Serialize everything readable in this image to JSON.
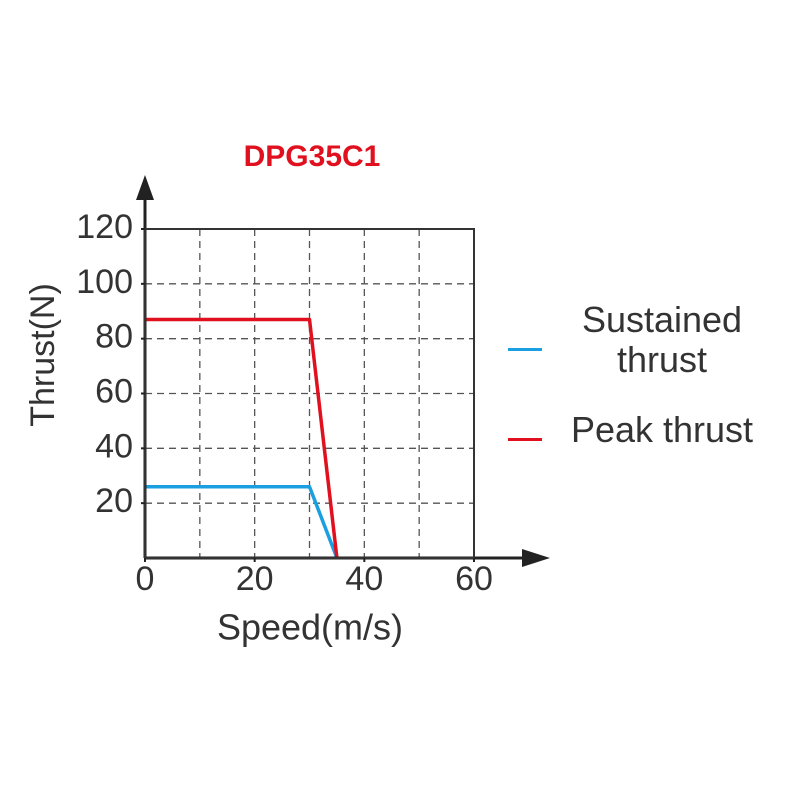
{
  "chart_data": {
    "type": "line",
    "title": "DPG35C1",
    "x_label": "Speed(m/s)",
    "y_label": "Thrust(N)",
    "x": [
      0,
      30,
      35
    ],
    "series": [
      {
        "name": "Sustained thrust",
        "color": "#1a9fe0",
        "values": [
          26,
          26,
          0
        ]
      },
      {
        "name": "Peak thrust",
        "color": "#e0101e",
        "values": [
          87,
          87,
          0
        ]
      }
    ],
    "xlim": [
      0,
      60
    ],
    "ylim": [
      0,
      120
    ],
    "xticks": [
      0,
      20,
      40,
      60
    ],
    "yticks": [
      20,
      40,
      60,
      80,
      100,
      120
    ],
    "x_grid": [
      10,
      20,
      30,
      40,
      50
    ],
    "y_grid": [
      20,
      40,
      60,
      80,
      100
    ],
    "grid": true,
    "legend": "right"
  }
}
